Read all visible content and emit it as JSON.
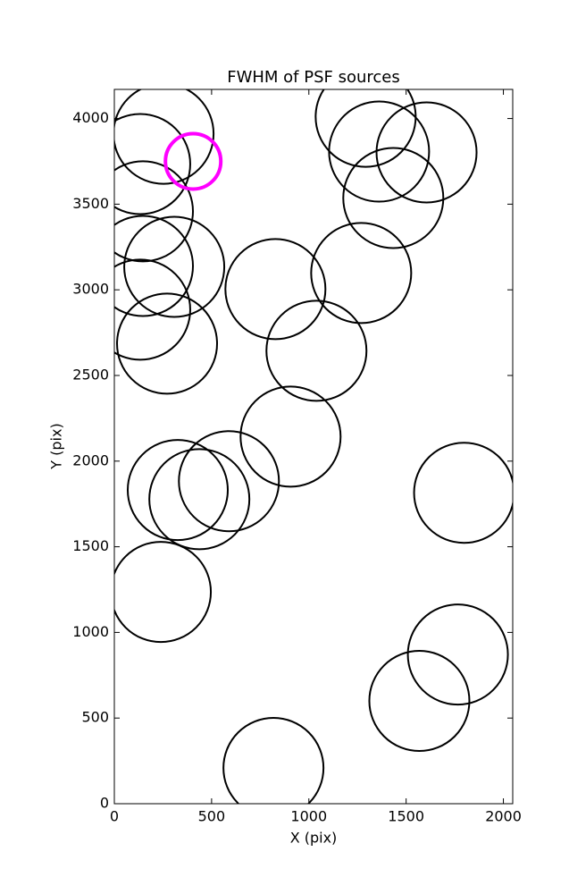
{
  "chart_data": {
    "type": "scatter",
    "title": "FWHM of PSF sources",
    "x_label": "X (pix)",
    "y_label": "Y (pix)",
    "xlim": [
      0,
      2048
    ],
    "ylim": [
      0,
      4170
    ],
    "xticks": [
      0,
      500,
      1000,
      1500,
      2000
    ],
    "yticks": [
      0,
      500,
      1000,
      1500,
      2000,
      2500,
      3000,
      3500,
      4000
    ],
    "series": [
      {
        "color": "#000000",
        "x": [
          253,
          133,
          147,
          147,
          133,
          271,
          308,
          828,
          1039,
          1269,
          1292,
          1361,
          1605,
          1434,
          906,
          326,
          437,
          589,
          1798,
          239,
          1766,
          1568,
          818
        ],
        "values": [
          3911,
          3734,
          3458,
          3139,
          2884,
          2686,
          3134,
          3004,
          2644,
          3098,
          4010,
          3807,
          3802,
          3536,
          2143,
          1831,
          1778,
          1883,
          1815,
          1236,
          871,
          600,
          209
        ]
      },
      {
        "color": "#ff00ff",
        "x": [
          405
        ],
        "values": [
          3750
        ]
      }
    ]
  }
}
